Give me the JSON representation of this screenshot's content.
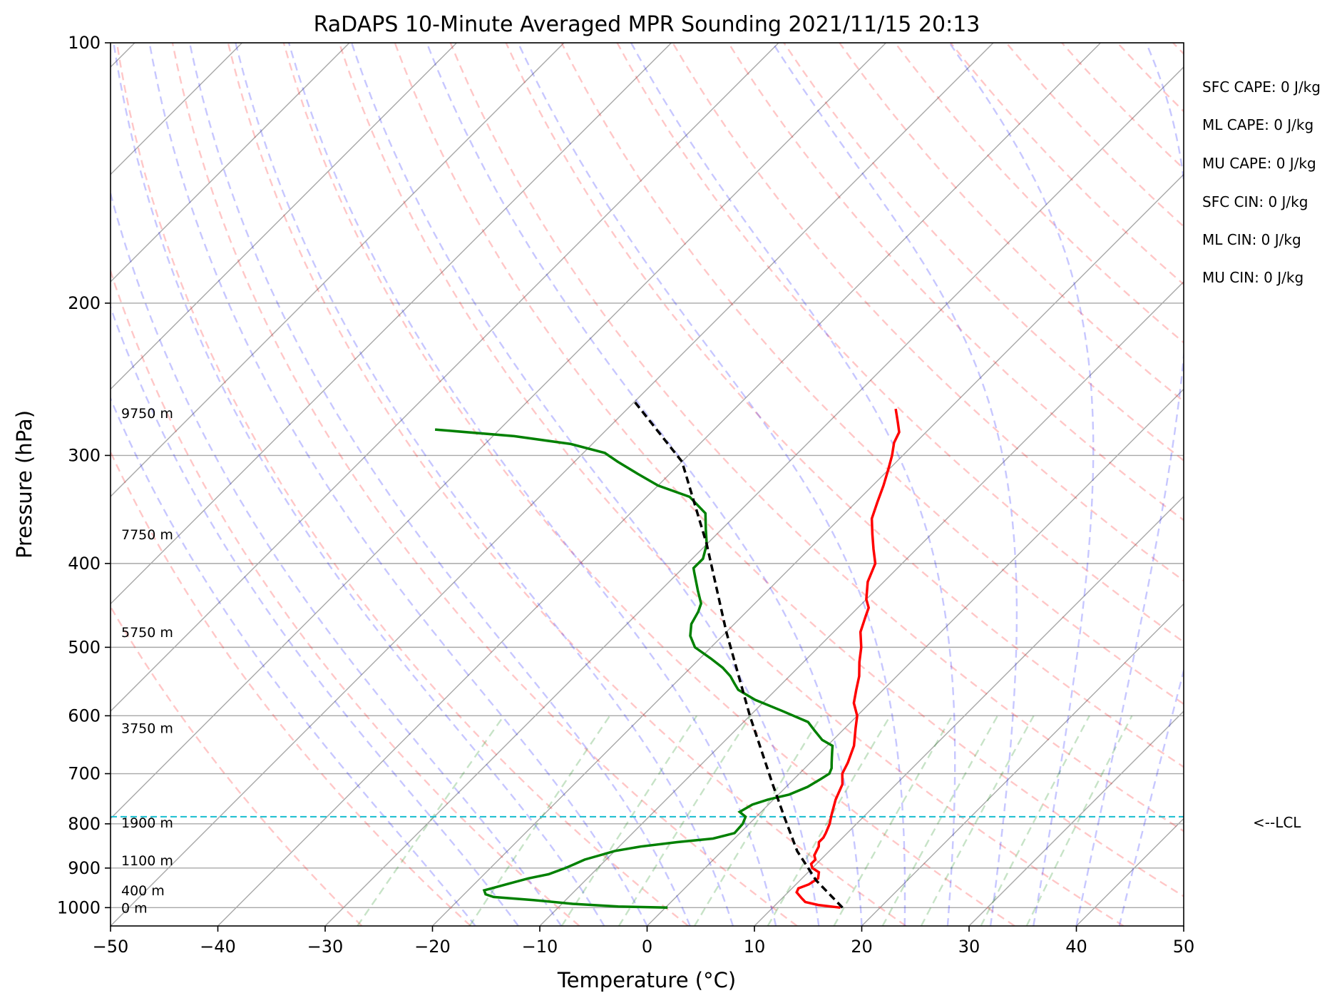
{
  "chart_data": {
    "type": "line",
    "title": "RaDAPS 10-Minute Averaged MPR Sounding 2021/11/15 20:13",
    "xlabel": "Temperature (°C)",
    "ylabel": "Pressure (hPa)",
    "xlim": [
      -50,
      50
    ],
    "ylim": [
      1050,
      100
    ],
    "y_scale": "log",
    "x_ticks": [
      {
        "value": -50,
        "label": "−50"
      },
      {
        "value": -40,
        "label": "−40"
      },
      {
        "value": -30,
        "label": "−30"
      },
      {
        "value": -20,
        "label": "−20"
      },
      {
        "value": -10,
        "label": "−10"
      },
      {
        "value": 0,
        "label": "0"
      },
      {
        "value": 10,
        "label": "10"
      },
      {
        "value": 20,
        "label": "20"
      },
      {
        "value": 30,
        "label": "30"
      },
      {
        "value": 40,
        "label": "40"
      },
      {
        "value": 50,
        "label": "50"
      }
    ],
    "y_ticks": [
      {
        "value": 100,
        "label": "100"
      },
      {
        "value": 200,
        "label": "200"
      },
      {
        "value": 300,
        "label": "300"
      },
      {
        "value": 400,
        "label": "400"
      },
      {
        "value": 500,
        "label": "500"
      },
      {
        "value": 600,
        "label": "600"
      },
      {
        "value": 700,
        "label": "700"
      },
      {
        "value": 800,
        "label": "800"
      },
      {
        "value": 900,
        "label": "900"
      },
      {
        "value": 1000,
        "label": "1000"
      }
    ],
    "grid": true,
    "skew_degrees": 45,
    "height_labels": [
      {
        "p": 268,
        "label": "9750 m"
      },
      {
        "p": 370,
        "label": "7750 m"
      },
      {
        "p": 480,
        "label": "5750 m"
      },
      {
        "p": 620,
        "label": "3750 m"
      },
      {
        "p": 797,
        "label": "1900 m"
      },
      {
        "p": 882,
        "label": "1100 m"
      },
      {
        "p": 955,
        "label": "400 m"
      },
      {
        "p": 1000,
        "label": "0 m"
      }
    ],
    "indices": [
      "SFC CAPE: 0 J/kg",
      "ML CAPE: 0 J/kg",
      "MU CAPE: 0 J/kg",
      "SFC CIN: 0 J/kg",
      "ML CIN: 0 J/kg",
      "MU CIN: 0 J/kg"
    ],
    "lcl": {
      "p": 785,
      "label": "<--LCL",
      "color": "#17becf"
    },
    "series": [
      {
        "kind": "temperature",
        "color": "#ff0000",
        "points": [
          [
            16.3,
            1000
          ],
          [
            14.0,
            993
          ],
          [
            12.5,
            985
          ],
          [
            11.8,
            975
          ],
          [
            10.8,
            960
          ],
          [
            10.6,
            950
          ],
          [
            11.2,
            940
          ],
          [
            11.5,
            925
          ],
          [
            11.0,
            910
          ],
          [
            10.0,
            900
          ],
          [
            9.5,
            890
          ],
          [
            9.5,
            880
          ],
          [
            9.0,
            870
          ],
          [
            8.8,
            860
          ],
          [
            8.6,
            850
          ],
          [
            8.2,
            840
          ],
          [
            8.2,
            830
          ],
          [
            8.0,
            820
          ],
          [
            7.5,
            800
          ],
          [
            6.8,
            780
          ],
          [
            5.8,
            750
          ],
          [
            5.0,
            720
          ],
          [
            4.0,
            700
          ],
          [
            3.5,
            680
          ],
          [
            2.5,
            650
          ],
          [
            1.0,
            620
          ],
          [
            0.0,
            600
          ],
          [
            -1.5,
            580
          ],
          [
            -2.5,
            560
          ],
          [
            -3.5,
            540
          ],
          [
            -4.8,
            520
          ],
          [
            -6.0,
            500
          ],
          [
            -7.5,
            480
          ],
          [
            -8.5,
            460
          ],
          [
            -9.0,
            450
          ],
          [
            -10.0,
            440
          ],
          [
            -11.5,
            420
          ],
          [
            -12.5,
            400
          ],
          [
            -14.0,
            385
          ],
          [
            -15.5,
            370
          ],
          [
            -17.0,
            355
          ],
          [
            -18.0,
            340
          ],
          [
            -19.0,
            325
          ],
          [
            -20.0,
            312
          ],
          [
            -21.0,
            300
          ],
          [
            -22.0,
            290
          ],
          [
            -22.5,
            282
          ],
          [
            -23.5,
            275
          ],
          [
            -25.0,
            265
          ]
        ]
      },
      {
        "kind": "dewpoint",
        "color": "#008000",
        "points": [
          [
            0.2,
            1000
          ],
          [
            -4.5,
            997
          ],
          [
            -9.0,
            990
          ],
          [
            -13.0,
            980
          ],
          [
            -17.0,
            972
          ],
          [
            -18.0,
            965
          ],
          [
            -18.5,
            955
          ],
          [
            -18.0,
            950
          ],
          [
            -17.0,
            940
          ],
          [
            -15.5,
            925
          ],
          [
            -14.0,
            915
          ],
          [
            -13.0,
            900
          ],
          [
            -12.5,
            890
          ],
          [
            -12.0,
            880
          ],
          [
            -11.0,
            870
          ],
          [
            -10.0,
            860
          ],
          [
            -8.0,
            850
          ],
          [
            -5.0,
            840
          ],
          [
            -2.0,
            832
          ],
          [
            -0.5,
            820
          ],
          [
            -0.6,
            800
          ],
          [
            -1.0,
            785
          ],
          [
            -2.0,
            775
          ],
          [
            -1.5,
            760
          ],
          [
            -0.5,
            750
          ],
          [
            1.0,
            740
          ],
          [
            2.0,
            725
          ],
          [
            2.5,
            710
          ],
          [
            2.8,
            700
          ],
          [
            2.5,
            690
          ],
          [
            2.0,
            680
          ],
          [
            1.5,
            670
          ],
          [
            1.0,
            660
          ],
          [
            0.5,
            650
          ],
          [
            -1.0,
            640
          ],
          [
            -2.5,
            625
          ],
          [
            -4.0,
            610
          ],
          [
            -7.5,
            592
          ],
          [
            -11.0,
            575
          ],
          [
            -13.5,
            560
          ],
          [
            -14.5,
            550
          ],
          [
            -15.5,
            540
          ],
          [
            -17.0,
            528
          ],
          [
            -19.0,
            515
          ],
          [
            -21.5,
            500
          ],
          [
            -23.0,
            485
          ],
          [
            -24.0,
            470
          ],
          [
            -24.5,
            455
          ],
          [
            -25.0,
            445
          ],
          [
            -26.5,
            430
          ],
          [
            -28.5,
            410
          ],
          [
            -29.0,
            405
          ],
          [
            -29.0,
            395
          ],
          [
            -30.0,
            380
          ],
          [
            -31.5,
            365
          ],
          [
            -33.0,
            350
          ],
          [
            -36.0,
            335
          ],
          [
            -40.0,
            325
          ],
          [
            -43.0,
            315
          ],
          [
            -46.0,
            305
          ],
          [
            -48.0,
            298
          ],
          [
            -52.0,
            291
          ],
          [
            -58.0,
            285
          ],
          [
            -66.0,
            280
          ]
        ]
      },
      {
        "kind": "parcel",
        "color": "#000000",
        "points": [
          [
            16.5,
            1000
          ],
          [
            11.5,
            930
          ],
          [
            7.0,
            860
          ],
          [
            2.6,
            785
          ],
          [
            -1.5,
            720
          ],
          [
            -10.0,
            600
          ],
          [
            -20.0,
            480
          ],
          [
            -30.0,
            380
          ],
          [
            -40.0,
            305
          ],
          [
            -50.0,
            260
          ]
        ]
      }
    ]
  }
}
